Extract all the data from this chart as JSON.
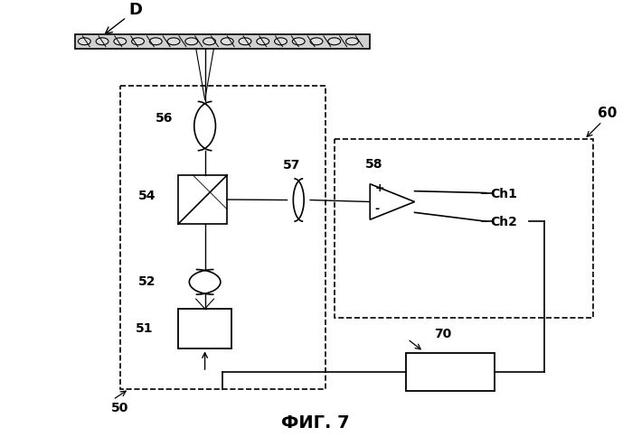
{
  "title": "ФИГ. 7",
  "bg_color": "#ffffff",
  "label_D": "D",
  "label_50": "50",
  "label_51": "51",
  "label_52": "52",
  "label_54": "54",
  "label_56": "56",
  "label_57": "57",
  "label_58": "58",
  "label_60": "60",
  "label_70": "70",
  "label_Ch1": "Ch1",
  "label_Ch2": "Ch2",
  "label_plus": "+",
  "label_minus": "-"
}
